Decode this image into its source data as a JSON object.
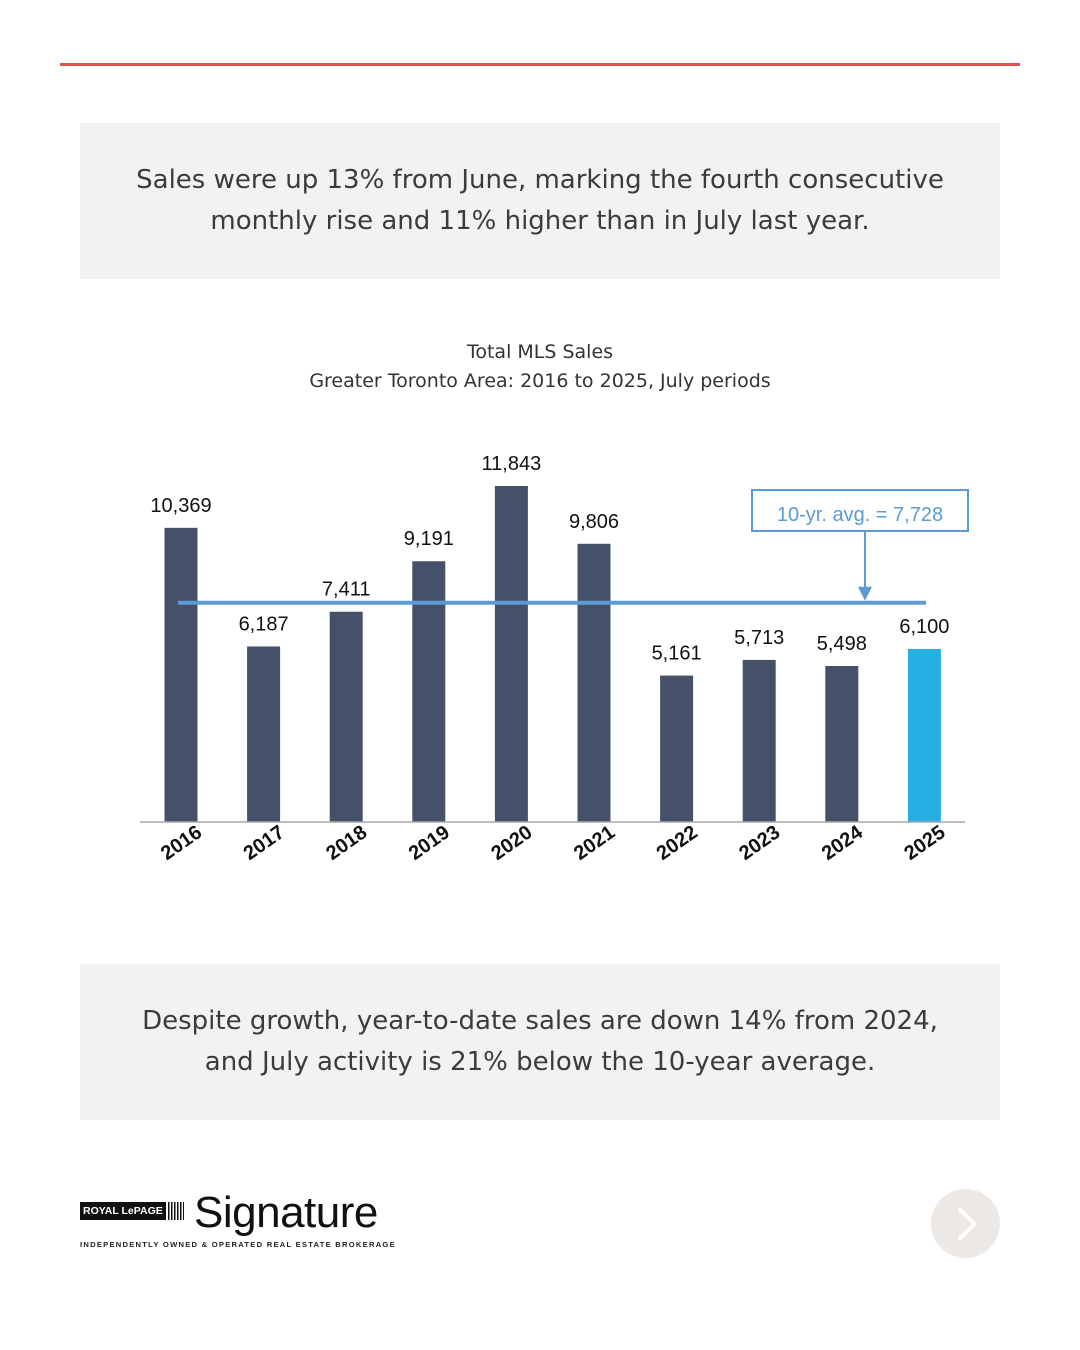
{
  "colors": {
    "accent_rule": "#e0504a",
    "callout_bg": "#f4f2f1",
    "bar_default": "#455168",
    "bar_highlight": "#27aee3",
    "avg_line": "#5b9bd5",
    "annotation_text": "#5b9bd5"
  },
  "callouts": {
    "top": "Sales were up 13% from June, marking the fourth consecutive monthly rise and 11% higher than in July last year.",
    "bottom": "Despite growth, year-to-date sales are down 14% from 2024, and July activity is 21% below the 10-year average."
  },
  "chart_data": {
    "type": "bar",
    "title": "Total MLS Sales",
    "subtitle": "Greater Toronto Area: 2016 to 2025, July periods",
    "categories": [
      "2016",
      "2017",
      "2018",
      "2019",
      "2020",
      "2021",
      "2022",
      "2023",
      "2024",
      "2025"
    ],
    "values": [
      10369,
      6187,
      7411,
      9191,
      11843,
      9806,
      5161,
      5713,
      5498,
      6100
    ],
    "value_labels": [
      "10,369",
      "6,187",
      "7,411",
      "9,191",
      "11,843",
      "9,806",
      "5,161",
      "5,713",
      "5,498",
      "6,100"
    ],
    "highlight_category": "2025",
    "average": {
      "value": 7728,
      "label": "10-yr. avg. = 7,728"
    },
    "ylim": [
      0,
      12000
    ],
    "xlabel": "",
    "ylabel": "",
    "grid": false,
    "legend": "none"
  },
  "brand": {
    "royal_lepage": "ROYAL LePAGE",
    "signature": "Signature",
    "tagline": "INDEPENDENTLY OWNED & OPERATED REAL ESTATE BROKERAGE"
  },
  "navigation": {
    "next_icon": "chevron-right-icon"
  }
}
